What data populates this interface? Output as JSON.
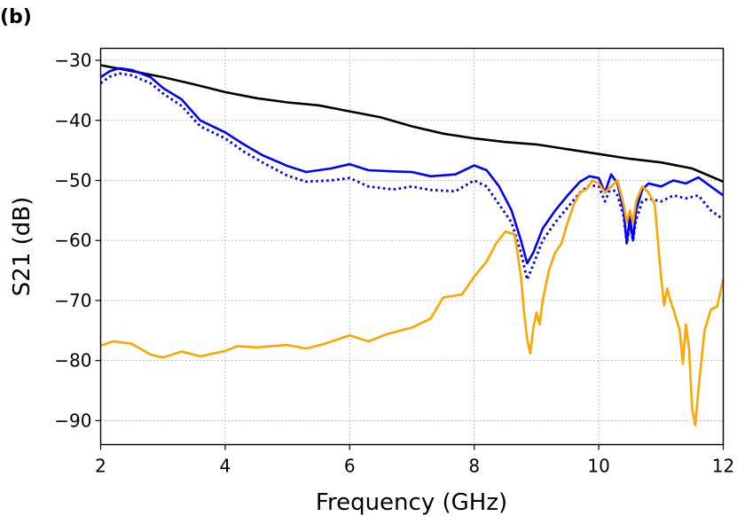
{
  "panel_label": "(b)",
  "chart_data": {
    "type": "line",
    "title": "",
    "xlabel": "Frequency (GHz)",
    "ylabel": "S21 (dB)",
    "xlim": [
      2,
      12
    ],
    "ylim": [
      -94,
      -28
    ],
    "xticks": [
      2,
      4,
      6,
      8,
      10,
      12
    ],
    "xtick_labels": [
      "2",
      "4",
      "6",
      "8",
      "10",
      "12"
    ],
    "yticks": [
      -30,
      -40,
      -50,
      -60,
      -70,
      -80,
      -90
    ],
    "ytick_labels": [
      "−30",
      "−40",
      "−50",
      "−60",
      "−70",
      "−80",
      "−90"
    ],
    "grid": true,
    "series": [
      {
        "color": "#000000",
        "style": "solid",
        "points": [
          [
            2.0,
            -30.8
          ],
          [
            2.5,
            -31.8
          ],
          [
            3.0,
            -32.8
          ],
          [
            3.5,
            -34.0
          ],
          [
            4.0,
            -35.3
          ],
          [
            4.5,
            -36.3
          ],
          [
            5.0,
            -37.0
          ],
          [
            5.5,
            -37.5
          ],
          [
            6.0,
            -38.5
          ],
          [
            6.5,
            -39.5
          ],
          [
            7.0,
            -41.0
          ],
          [
            7.5,
            -42.2
          ],
          [
            8.0,
            -43.0
          ],
          [
            8.5,
            -43.6
          ],
          [
            9.0,
            -44.0
          ],
          [
            9.5,
            -44.8
          ],
          [
            10.0,
            -45.6
          ],
          [
            10.5,
            -46.4
          ],
          [
            11.0,
            -47.0
          ],
          [
            11.5,
            -48.0
          ],
          [
            12.0,
            -50.2
          ]
        ]
      },
      {
        "color": "#0000ff",
        "style": "solid",
        "points": [
          [
            2.0,
            -32.8
          ],
          [
            2.15,
            -31.8
          ],
          [
            2.3,
            -31.3
          ],
          [
            2.5,
            -31.6
          ],
          [
            2.8,
            -32.8
          ],
          [
            3.0,
            -34.6
          ],
          [
            3.3,
            -36.5
          ],
          [
            3.6,
            -40.0
          ],
          [
            4.0,
            -42.0
          ],
          [
            4.3,
            -44.0
          ],
          [
            4.6,
            -45.8
          ],
          [
            5.0,
            -47.6
          ],
          [
            5.3,
            -48.6
          ],
          [
            5.7,
            -48.0
          ],
          [
            6.0,
            -47.3
          ],
          [
            6.3,
            -48.3
          ],
          [
            6.7,
            -48.5
          ],
          [
            7.0,
            -48.6
          ],
          [
            7.3,
            -49.3
          ],
          [
            7.7,
            -49.0
          ],
          [
            8.0,
            -47.5
          ],
          [
            8.2,
            -48.3
          ],
          [
            8.4,
            -51.0
          ],
          [
            8.6,
            -55.0
          ],
          [
            8.75,
            -60.0
          ],
          [
            8.85,
            -63.8
          ],
          [
            8.95,
            -62.0
          ],
          [
            9.1,
            -58.0
          ],
          [
            9.3,
            -55.0
          ],
          [
            9.5,
            -52.5
          ],
          [
            9.7,
            -50.2
          ],
          [
            9.85,
            -49.3
          ],
          [
            10.0,
            -49.6
          ],
          [
            10.1,
            -52.0
          ],
          [
            10.2,
            -49.0
          ],
          [
            10.3,
            -50.5
          ],
          [
            10.4,
            -55.0
          ],
          [
            10.45,
            -60.5
          ],
          [
            10.5,
            -56.0
          ],
          [
            10.55,
            -60.0
          ],
          [
            10.6,
            -55.0
          ],
          [
            10.7,
            -51.5
          ],
          [
            10.8,
            -50.5
          ],
          [
            11.0,
            -51.0
          ],
          [
            11.2,
            -50.0
          ],
          [
            11.4,
            -50.5
          ],
          [
            11.6,
            -49.5
          ],
          [
            11.8,
            -51.0
          ],
          [
            12.0,
            -52.5
          ]
        ]
      },
      {
        "color": "#0000ff",
        "style": "dotted",
        "points": [
          [
            2.0,
            -33.8
          ],
          [
            2.15,
            -32.7
          ],
          [
            2.3,
            -32.2
          ],
          [
            2.5,
            -32.5
          ],
          [
            2.8,
            -33.8
          ],
          [
            3.0,
            -35.5
          ],
          [
            3.3,
            -37.6
          ],
          [
            3.6,
            -41.0
          ],
          [
            4.0,
            -43.0
          ],
          [
            4.3,
            -45.2
          ],
          [
            4.6,
            -47.0
          ],
          [
            5.0,
            -49.2
          ],
          [
            5.3,
            -50.2
          ],
          [
            5.7,
            -50.0
          ],
          [
            6.0,
            -49.6
          ],
          [
            6.3,
            -51.0
          ],
          [
            6.7,
            -51.5
          ],
          [
            7.0,
            -51.0
          ],
          [
            7.3,
            -51.6
          ],
          [
            7.7,
            -51.8
          ],
          [
            8.0,
            -50.0
          ],
          [
            8.2,
            -51.0
          ],
          [
            8.4,
            -54.0
          ],
          [
            8.6,
            -57.0
          ],
          [
            8.75,
            -62.0
          ],
          [
            8.85,
            -66.5
          ],
          [
            8.95,
            -64.0
          ],
          [
            9.1,
            -60.0
          ],
          [
            9.3,
            -57.0
          ],
          [
            9.5,
            -54.5
          ],
          [
            9.7,
            -52.0
          ],
          [
            9.85,
            -50.8
          ],
          [
            10.0,
            -51.0
          ],
          [
            10.1,
            -53.5
          ],
          [
            10.2,
            -51.0
          ],
          [
            10.3,
            -52.5
          ],
          [
            10.4,
            -56.0
          ],
          [
            10.45,
            -60.5
          ],
          [
            10.5,
            -57.5
          ],
          [
            10.55,
            -60.0
          ],
          [
            10.6,
            -56.5
          ],
          [
            10.7,
            -53.5
          ],
          [
            10.8,
            -53.0
          ],
          [
            11.0,
            -53.5
          ],
          [
            11.2,
            -52.5
          ],
          [
            11.4,
            -53.0
          ],
          [
            11.6,
            -52.5
          ],
          [
            11.8,
            -55.0
          ],
          [
            12.0,
            -56.5
          ]
        ]
      },
      {
        "color": "#ffa500",
        "style": "solid",
        "points": [
          [
            2.0,
            -77.5
          ],
          [
            2.2,
            -76.8
          ],
          [
            2.5,
            -77.2
          ],
          [
            2.8,
            -79.0
          ],
          [
            3.0,
            -79.5
          ],
          [
            3.3,
            -78.5
          ],
          [
            3.6,
            -79.3
          ],
          [
            4.0,
            -78.4
          ],
          [
            4.2,
            -77.6
          ],
          [
            4.5,
            -77.8
          ],
          [
            5.0,
            -77.4
          ],
          [
            5.3,
            -78.0
          ],
          [
            5.6,
            -77.2
          ],
          [
            6.0,
            -75.8
          ],
          [
            6.3,
            -76.8
          ],
          [
            6.6,
            -75.6
          ],
          [
            7.0,
            -74.5
          ],
          [
            7.3,
            -73.0
          ],
          [
            7.5,
            -69.5
          ],
          [
            7.8,
            -69.0
          ],
          [
            8.0,
            -66.0
          ],
          [
            8.2,
            -63.5
          ],
          [
            8.35,
            -60.5
          ],
          [
            8.5,
            -58.5
          ],
          [
            8.65,
            -59.0
          ],
          [
            8.75,
            -66.0
          ],
          [
            8.8,
            -72.0
          ],
          [
            8.85,
            -76.5
          ],
          [
            8.9,
            -78.8
          ],
          [
            8.95,
            -74.5
          ],
          [
            9.0,
            -72.0
          ],
          [
            9.05,
            -74.0
          ],
          [
            9.1,
            -70.0
          ],
          [
            9.2,
            -65.0
          ],
          [
            9.3,
            -62.0
          ],
          [
            9.4,
            -60.5
          ],
          [
            9.5,
            -57.0
          ],
          [
            9.6,
            -54.0
          ],
          [
            9.7,
            -52.0
          ],
          [
            9.8,
            -51.5
          ],
          [
            9.9,
            -50.0
          ],
          [
            10.0,
            -50.5
          ],
          [
            10.1,
            -52.0
          ],
          [
            10.2,
            -51.0
          ],
          [
            10.3,
            -50.0
          ],
          [
            10.4,
            -54.0
          ],
          [
            10.45,
            -57.0
          ],
          [
            10.5,
            -55.0
          ],
          [
            10.55,
            -57.0
          ],
          [
            10.6,
            -53.5
          ],
          [
            10.7,
            -51.0
          ],
          [
            10.8,
            -52.0
          ],
          [
            10.9,
            -54.0
          ],
          [
            10.95,
            -60.0
          ],
          [
            11.0,
            -66.0
          ],
          [
            11.05,
            -70.8
          ],
          [
            11.1,
            -68.0
          ],
          [
            11.15,
            -70.0
          ],
          [
            11.2,
            -71.5
          ],
          [
            11.3,
            -75.0
          ],
          [
            11.35,
            -80.5
          ],
          [
            11.4,
            -74.0
          ],
          [
            11.45,
            -78.0
          ],
          [
            11.5,
            -88.0
          ],
          [
            11.55,
            -90.8
          ],
          [
            11.6,
            -85.0
          ],
          [
            11.65,
            -80.0
          ],
          [
            11.7,
            -75.0
          ],
          [
            11.8,
            -71.5
          ],
          [
            11.9,
            -71.0
          ],
          [
            12.0,
            -66.5
          ]
        ]
      }
    ]
  }
}
